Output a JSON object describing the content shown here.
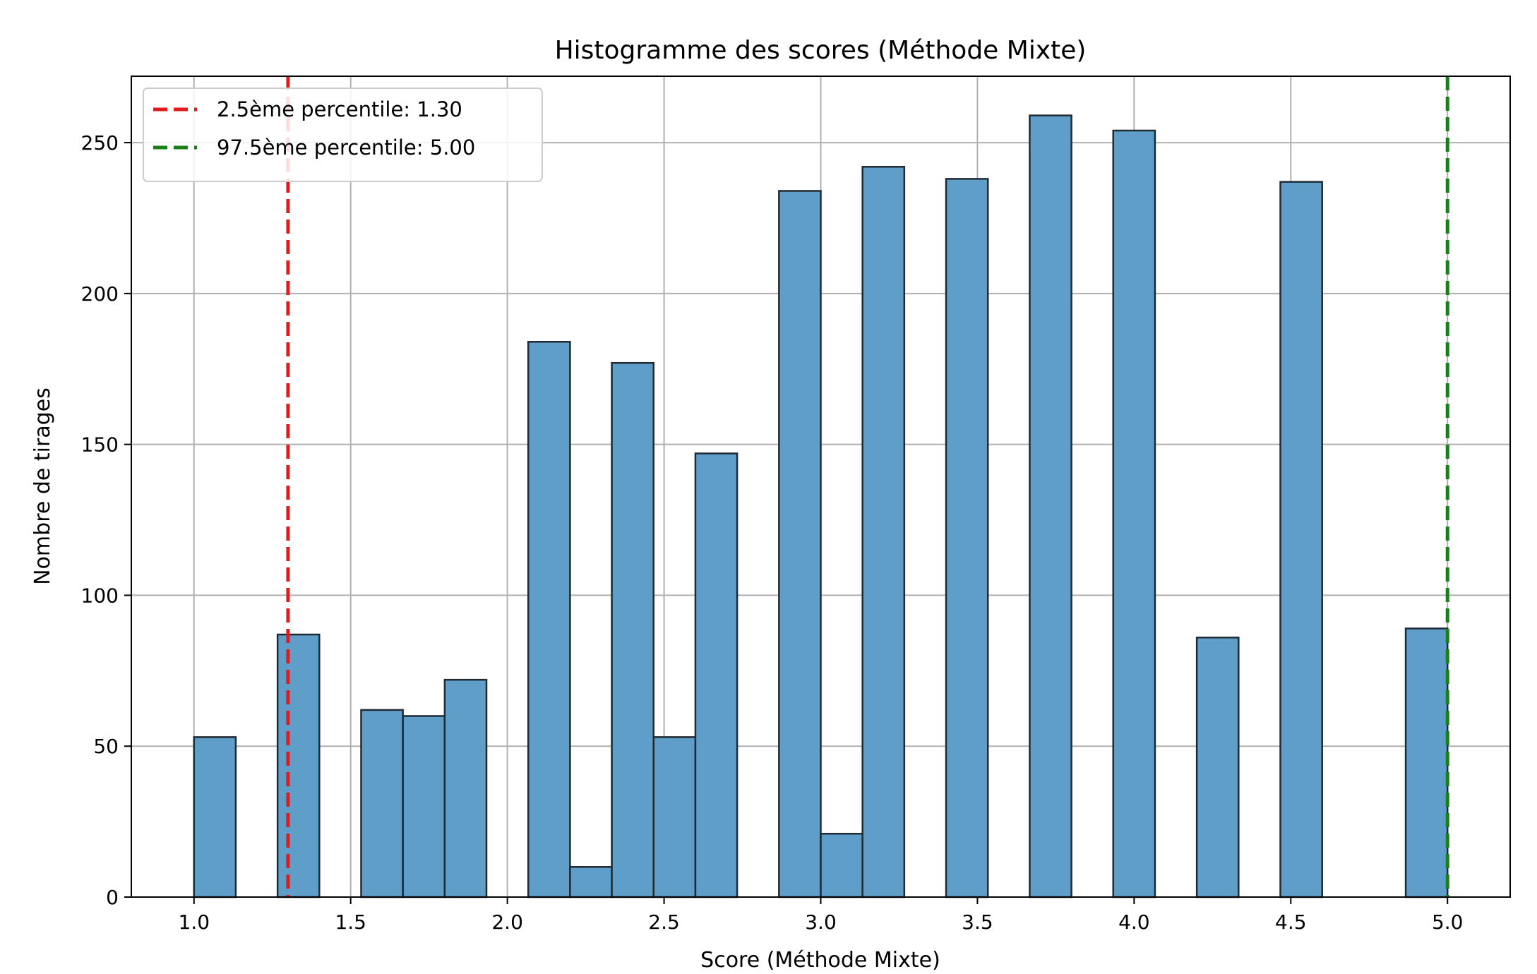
{
  "chart_data": {
    "type": "bar",
    "title": "Histogramme des scores (Méthode Mixte)",
    "xlabel": "Score (Méthode Mixte)",
    "ylabel": "Nombre de tirages",
    "xlim": [
      0.8,
      5.2
    ],
    "ylim": [
      0,
      272
    ],
    "xticks": [
      1.0,
      1.5,
      2.0,
      2.5,
      3.0,
      3.5,
      4.0,
      4.5,
      5.0
    ],
    "xtick_labels": [
      "1.0",
      "1.5",
      "2.0",
      "2.5",
      "3.0",
      "3.5",
      "4.0",
      "4.5",
      "5.0"
    ],
    "yticks": [
      0,
      50,
      100,
      150,
      200,
      250
    ],
    "ytick_labels": [
      "0",
      "50",
      "100",
      "150",
      "200",
      "250"
    ],
    "grid": true,
    "bar_color": "#5f9ec9",
    "bar_edge_color": "#1f2a33",
    "bin_width": 0.1333,
    "bins": [
      {
        "x0": 1.0,
        "value": 53
      },
      {
        "x0": 1.2667,
        "value": 87
      },
      {
        "x0": 1.5333,
        "value": 62
      },
      {
        "x0": 1.6667,
        "value": 60
      },
      {
        "x0": 1.8,
        "value": 72
      },
      {
        "x0": 2.0667,
        "value": 184
      },
      {
        "x0": 2.2,
        "value": 10
      },
      {
        "x0": 2.3333,
        "value": 177
      },
      {
        "x0": 2.4667,
        "value": 53
      },
      {
        "x0": 2.6,
        "value": 147
      },
      {
        "x0": 2.8667,
        "value": 234
      },
      {
        "x0": 3.0,
        "value": 21
      },
      {
        "x0": 3.1333,
        "value": 242
      },
      {
        "x0": 3.4,
        "value": 238
      },
      {
        "x0": 3.6667,
        "value": 259
      },
      {
        "x0": 3.9333,
        "value": 254
      },
      {
        "x0": 4.2,
        "value": 86
      },
      {
        "x0": 4.4667,
        "value": 237
      },
      {
        "x0": 4.8667,
        "value": 89
      }
    ],
    "reference_lines": [
      {
        "x": 1.3,
        "color": "#e31a1c",
        "label": "2.5ème percentile: 1.30"
      },
      {
        "x": 5.0,
        "color": "#1a7f1a",
        "label": "97.5ème percentile: 5.00"
      }
    ],
    "legend_position": "top-left"
  }
}
